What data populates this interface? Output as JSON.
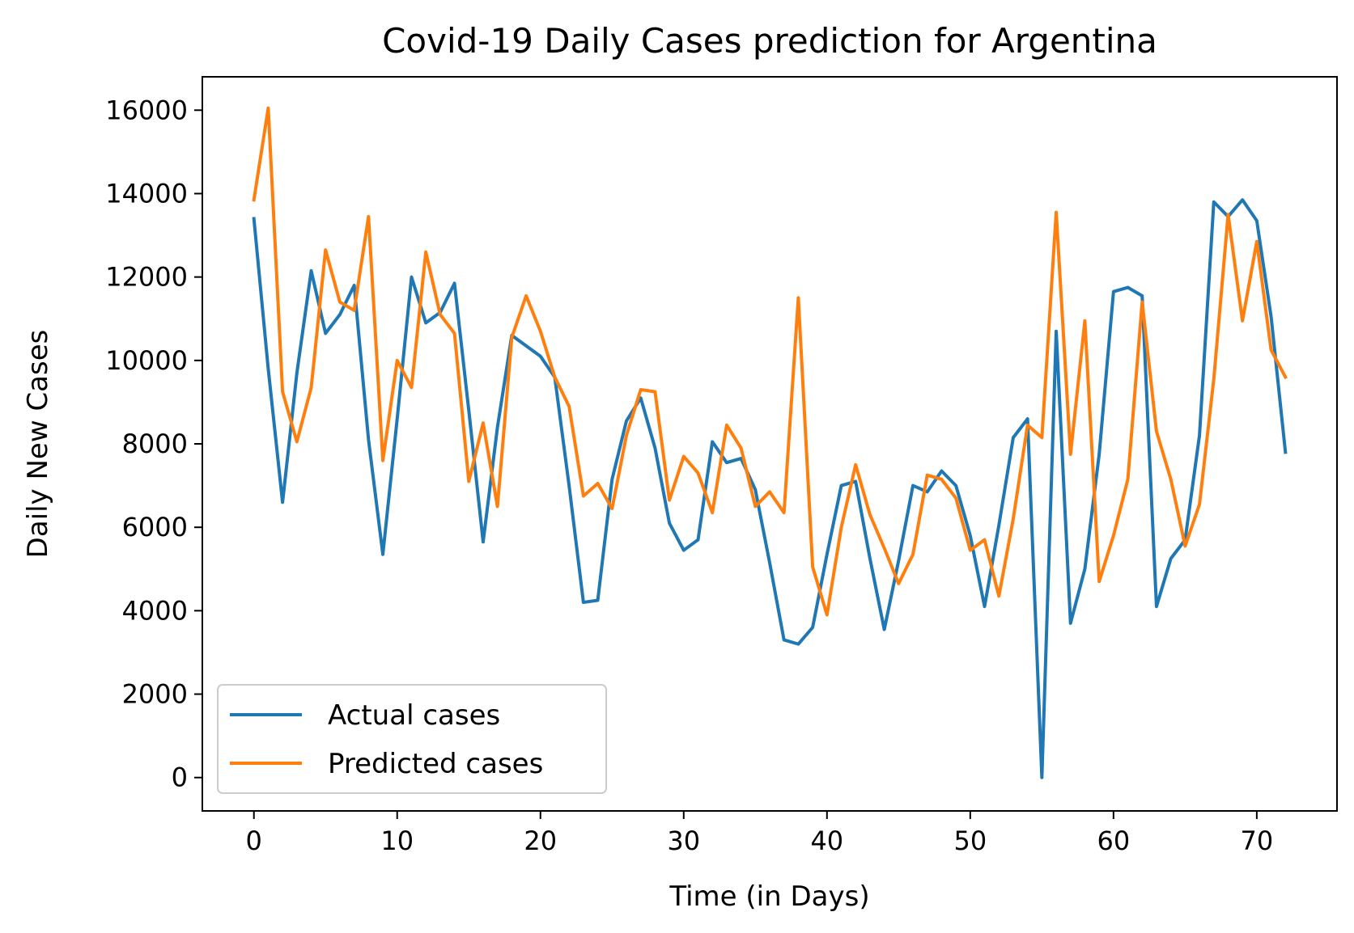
{
  "chart_data": {
    "type": "line",
    "title": "Covid-19 Daily Cases prediction for Argentina",
    "xlabel": "Time (in Days)",
    "ylabel": "Daily New Cases",
    "xlim": [
      -3.6,
      75.6
    ],
    "ylim": [
      -800,
      16800
    ],
    "x_ticks": [
      0,
      10,
      20,
      30,
      40,
      50,
      60,
      70
    ],
    "y_ticks": [
      0,
      2000,
      4000,
      6000,
      8000,
      10000,
      12000,
      14000,
      16000
    ],
    "grid": false,
    "legend_position": "lower-left",
    "series": [
      {
        "name": "Actual cases",
        "color": "#1f77b4",
        "values": [
          13400,
          9800,
          6600,
          9700,
          12150,
          10650,
          11100,
          11800,
          8100,
          5350,
          8600,
          12000,
          10900,
          11150,
          11850,
          8800,
          5650,
          8400,
          10600,
          10350,
          10100,
          9600,
          7000,
          4200,
          4250,
          7150,
          8550,
          9100,
          7900,
          6100,
          5450,
          5700,
          8050,
          7550,
          7650,
          6900,
          5150,
          3300,
          3200,
          3600,
          5350,
          7000,
          7100,
          5250,
          3550,
          5200,
          7000,
          6850,
          7350,
          7000,
          5800,
          4100,
          6050,
          8150,
          8600,
          0,
          10700,
          3700,
          5000,
          7750,
          11650,
          11750,
          11550,
          4100,
          5250,
          5700,
          8200,
          13800,
          13450,
          13850,
          13350,
          11050,
          7800
        ]
      },
      {
        "name": "Predicted cases",
        "color": "#ff7f0e",
        "values": [
          13850,
          16050,
          9250,
          8050,
          9350,
          12650,
          11400,
          11200,
          13450,
          7600,
          10000,
          9350,
          12600,
          11100,
          10650,
          7100,
          8500,
          6500,
          10550,
          11550,
          10700,
          9600,
          8900,
          6750,
          7050,
          6450,
          8200,
          9300,
          9250,
          6650,
          7700,
          7300,
          6350,
          8450,
          7900,
          6500,
          6850,
          6350,
          11500,
          5050,
          3900,
          6000,
          7500,
          6300,
          5500,
          4650,
          5350,
          7250,
          7150,
          6700,
          5450,
          5700,
          4350,
          6200,
          8450,
          8150,
          13550,
          7750,
          10950,
          4700,
          5800,
          7150,
          11400,
          8300,
          7150,
          5550,
          6550,
          9550,
          13500,
          10950,
          12850,
          10250,
          9600
        ]
      }
    ]
  }
}
